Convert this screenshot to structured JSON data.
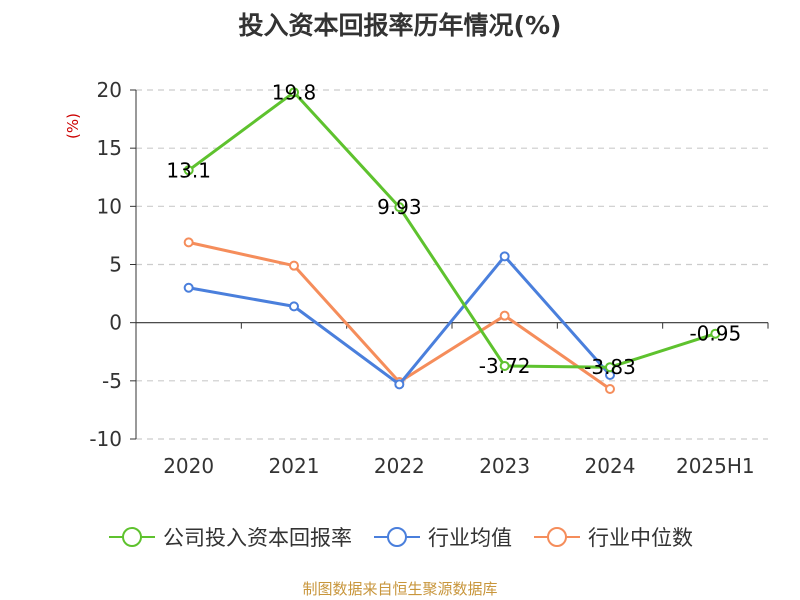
{
  "title": "投入资本回报率历年情况(%)",
  "source": "制图数据来自恒生聚源数据库",
  "colors": {
    "company": "#5ec22e",
    "industry_avg": "#4a7fdc",
    "industry_median": "#f58d5b",
    "unit_label": "#cc0000",
    "source_text": "#c8963c"
  },
  "chart_data": {
    "type": "line",
    "title": "投入资本回报率历年情况(%)",
    "ylabel": "(%)",
    "xlabel": "",
    "categories": [
      "2020",
      "2021",
      "2022",
      "2023",
      "2024",
      "2025H1"
    ],
    "ylim": [
      -10,
      20
    ],
    "yticks": [
      20,
      15,
      10,
      5,
      0,
      -5,
      -10
    ],
    "grid": true,
    "legend_position": "bottom",
    "series": [
      {
        "name": "公司投入资本回报率",
        "color_key": "company",
        "values": [
          13.1,
          19.8,
          9.93,
          -3.72,
          -3.83,
          -0.95
        ],
        "data_labels": [
          "13.1",
          "19.8",
          "9.93",
          "-3.72",
          "-3.83",
          "-0.95"
        ]
      },
      {
        "name": "行业均值",
        "color_key": "industry_avg",
        "values": [
          3.0,
          1.4,
          -5.3,
          5.7,
          -4.5,
          null
        ]
      },
      {
        "name": "行业中位数",
        "color_key": "industry_median",
        "values": [
          6.9,
          4.9,
          -5.1,
          0.6,
          -5.7,
          null
        ]
      }
    ]
  }
}
